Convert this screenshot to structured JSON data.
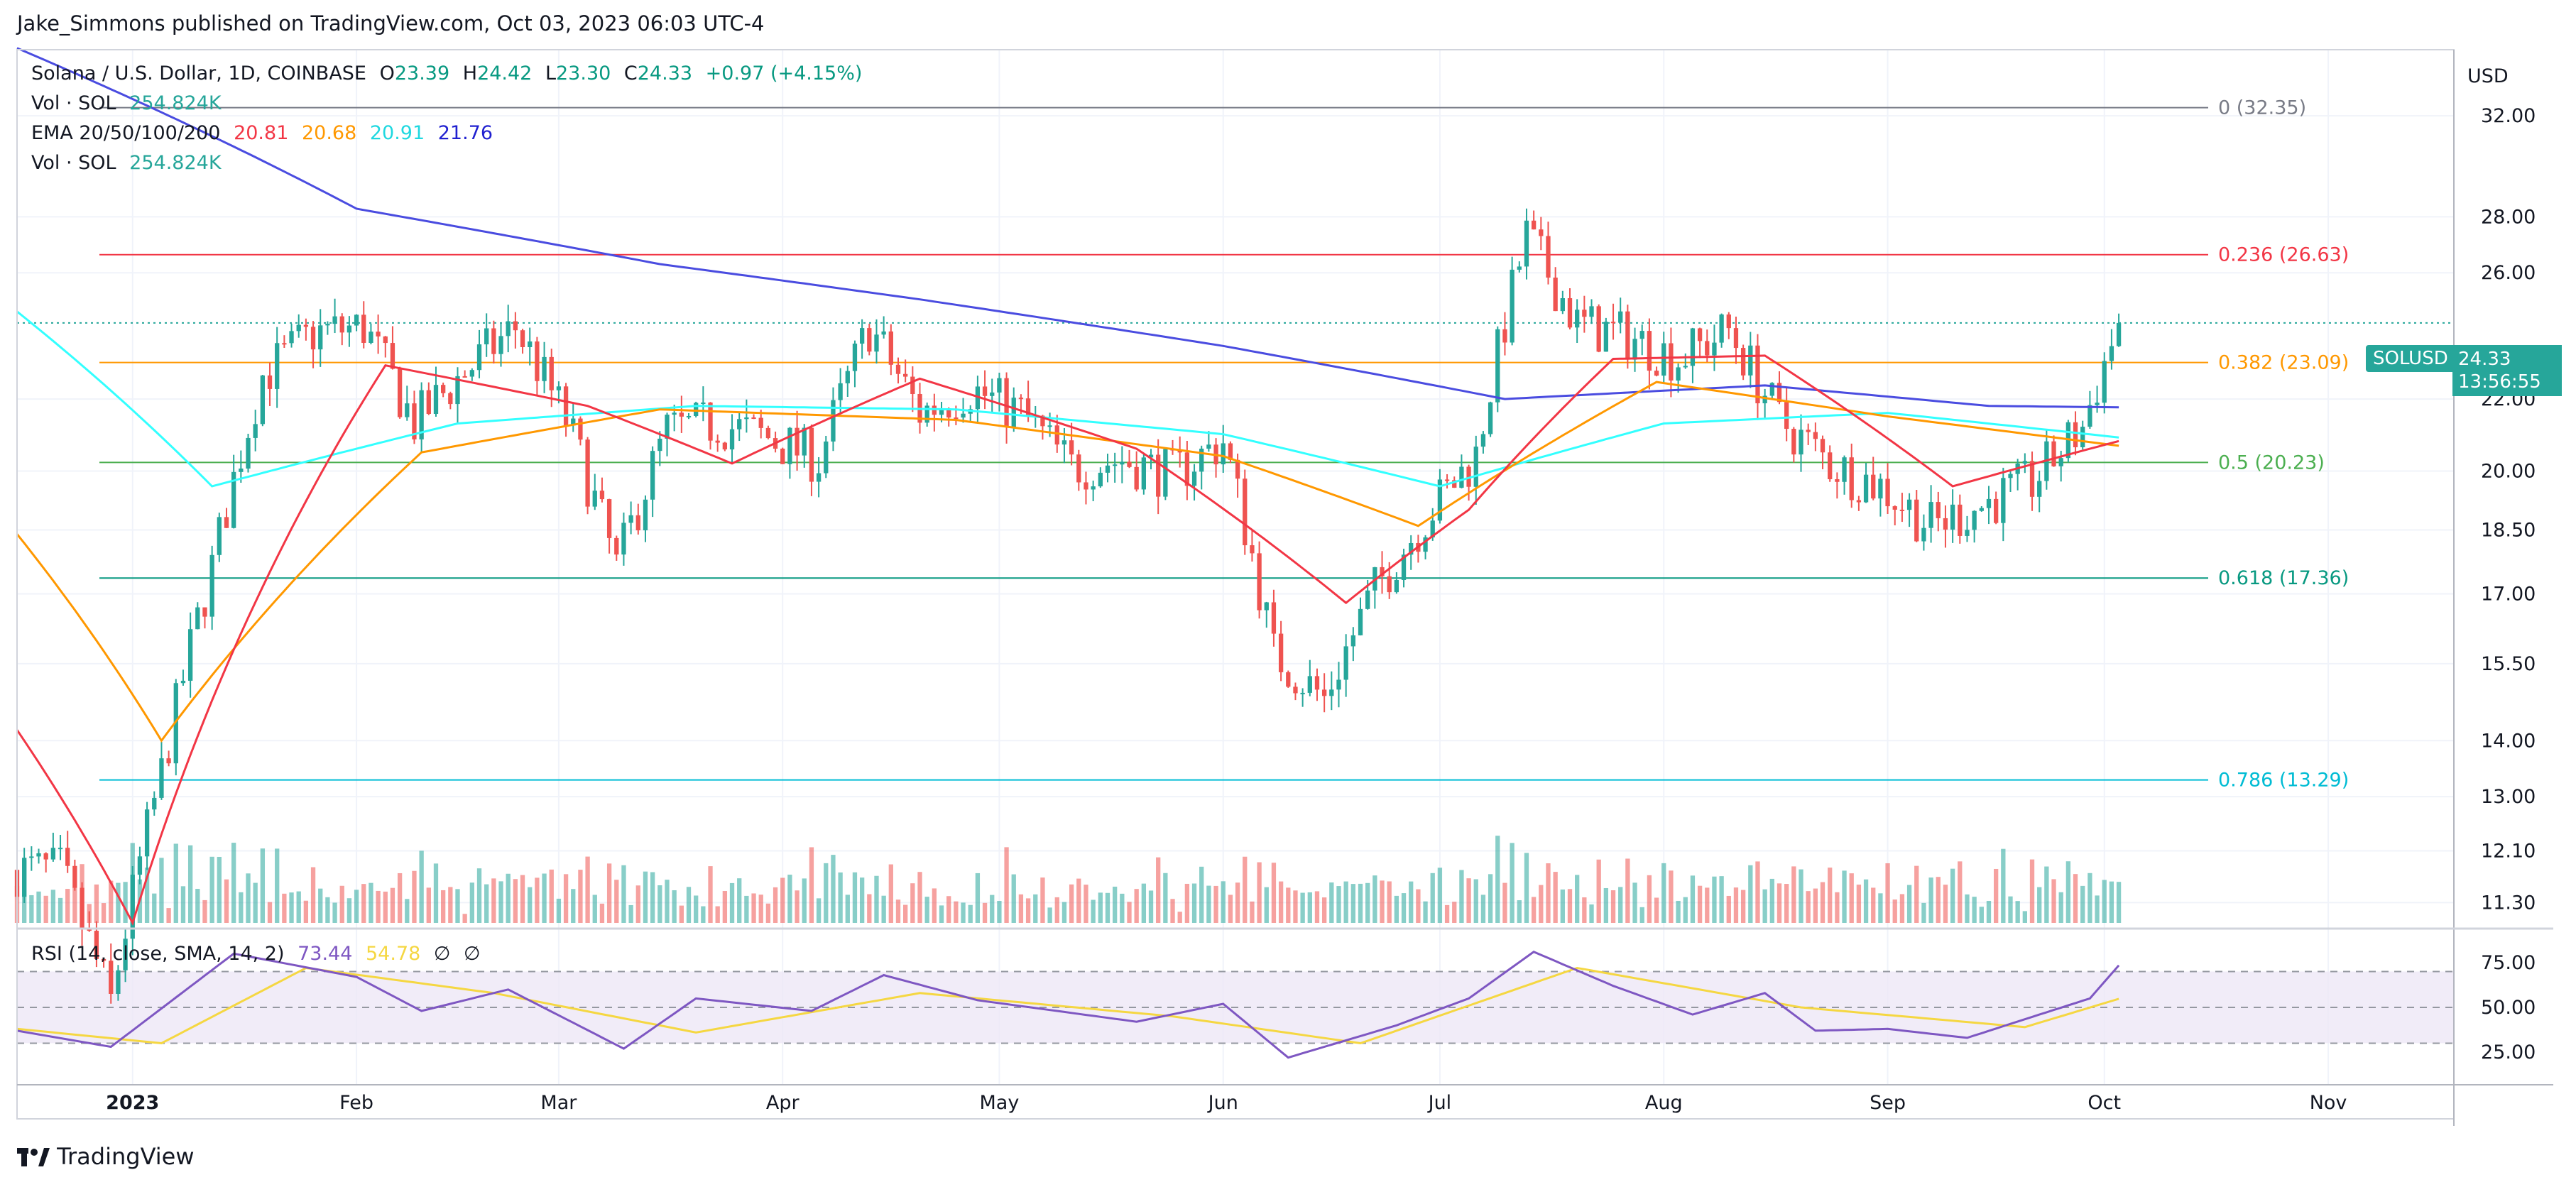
{
  "header": {
    "publisher": "Jake_Simmons published on TradingView.com, Oct 03, 2023 06:03 UTC-4"
  },
  "legend": {
    "symbol": "Solana / U.S. Dollar, 1D, COINBASE",
    "o_label": "O",
    "o": "23.39",
    "h_label": "H",
    "h": "24.42",
    "l_label": "L",
    "l": "23.30",
    "c_label": "C",
    "c": "24.33",
    "change": "+0.97 (+4.15%)",
    "vol_label": "Vol · SOL",
    "vol_value": "254.824K",
    "ema_label": "EMA 20/50/100/200",
    "ema20": "20.81",
    "ema50": "20.68",
    "ema100": "20.91",
    "ema200": "21.76",
    "vol2_label": "Vol · SOL",
    "vol2_value": "254.824K"
  },
  "currency": "USD",
  "price_tag": {
    "symbol": "SOLUSD",
    "price": "24.33",
    "countdown": "13:56:55"
  },
  "rsi": {
    "label": "RSI (14, close, SMA, 14, 2)",
    "rsi_value": "73.44",
    "sma_value": "54.78",
    "extra1": "∅",
    "extra2": "∅"
  },
  "footer": {
    "brand": "TradingView",
    "logo": "tradingview-logo"
  },
  "colors": {
    "up": "#26a69a",
    "down": "#ef5350",
    "ema20": "#f23645",
    "ema50": "#ff9800",
    "ema100": "#33ffff",
    "ema200": "#4a4ce0",
    "rsi": "#7e57c2",
    "rsi_sma": "#f5d742",
    "fib0": "#787b86",
    "fib236": "#f23645",
    "fib382": "#ff9800",
    "fib5": "#4caf50",
    "fib618": "#089981",
    "fib786": "#00bcd4"
  },
  "chart_data": {
    "type": "candlestick",
    "x_ticks": [
      "2023",
      "Feb",
      "Mar",
      "Apr",
      "May",
      "Jun",
      "Jul",
      "Aug",
      "Sep",
      "Oct",
      "Nov"
    ],
    "y_ticks": [
      "32.00",
      "28.00",
      "26.00",
      "22.00",
      "20.00",
      "18.50",
      "17.00",
      "15.50",
      "14.00",
      "13.00",
      "12.10",
      "11.30"
    ],
    "y_scale": "log",
    "rsi_ticks": [
      "75.00",
      "50.00",
      "25.00"
    ],
    "fib_levels": [
      {
        "label": "0 (32.35)",
        "value": 32.35
      },
      {
        "label": "0.236 (26.63)",
        "value": 26.63
      },
      {
        "label": "0.382 (23.09)",
        "value": 23.09
      },
      {
        "label": "0.5 (20.23)",
        "value": 20.23
      },
      {
        "label": "0.618 (17.36)",
        "value": 17.36
      },
      {
        "label": "0.786 (13.29)",
        "value": 13.29
      }
    ],
    "close_series": [
      {
        "date": "2022-12-22",
        "close": 11.8
      },
      {
        "date": "2022-12-29",
        "close": 9.9
      },
      {
        "date": "2023-01-05",
        "close": 13.4
      },
      {
        "date": "2023-01-12",
        "close": 17.6
      },
      {
        "date": "2023-01-19",
        "close": 22.7
      },
      {
        "date": "2023-01-26",
        "close": 24.0
      },
      {
        "date": "2023-02-02",
        "close": 24.2
      },
      {
        "date": "2023-02-09",
        "close": 21.3
      },
      {
        "date": "2023-02-16",
        "close": 22.8
      },
      {
        "date": "2023-02-23",
        "close": 24.2
      },
      {
        "date": "2023-03-02",
        "close": 21.4
      },
      {
        "date": "2023-03-09",
        "close": 17.6
      },
      {
        "date": "2023-03-16",
        "close": 21.1
      },
      {
        "date": "2023-03-23",
        "close": 21.3
      },
      {
        "date": "2023-03-30",
        "close": 20.9
      },
      {
        "date": "2023-04-06",
        "close": 20.3
      },
      {
        "date": "2023-04-13",
        "close": 24.2
      },
      {
        "date": "2023-04-20",
        "close": 21.6
      },
      {
        "date": "2023-04-27",
        "close": 22.3
      },
      {
        "date": "2023-05-04",
        "close": 21.6
      },
      {
        "date": "2023-05-11",
        "close": 20.1
      },
      {
        "date": "2023-05-18",
        "close": 20.3
      },
      {
        "date": "2023-05-25",
        "close": 19.9
      },
      {
        "date": "2023-06-01",
        "close": 20.8
      },
      {
        "date": "2023-06-08",
        "close": 15.7
      },
      {
        "date": "2023-06-15",
        "close": 14.8
      },
      {
        "date": "2023-06-22",
        "close": 17.1
      },
      {
        "date": "2023-06-29",
        "close": 18.8
      },
      {
        "date": "2023-07-06",
        "close": 20.4
      },
      {
        "date": "2023-07-13",
        "close": 27.3
      },
      {
        "date": "2023-07-20",
        "close": 24.3
      },
      {
        "date": "2023-07-27",
        "close": 23.9
      },
      {
        "date": "2023-08-03",
        "close": 23.2
      },
      {
        "date": "2023-08-10",
        "close": 24.1
      },
      {
        "date": "2023-08-17",
        "close": 21.4
      },
      {
        "date": "2023-08-24",
        "close": 20.2
      },
      {
        "date": "2023-08-31",
        "close": 19.6
      },
      {
        "date": "2023-09-07",
        "close": 18.6
      },
      {
        "date": "2023-09-14",
        "close": 19.1
      },
      {
        "date": "2023-09-21",
        "close": 19.7
      },
      {
        "date": "2023-09-28",
        "close": 21.2
      },
      {
        "date": "2023-10-03",
        "close": 24.33
      }
    ],
    "ema200_series": [
      {
        "date": "2022-12-16",
        "value": 35.0
      },
      {
        "date": "2023-02-01",
        "value": 28.3
      },
      {
        "date": "2023-03-15",
        "value": 26.3
      },
      {
        "date": "2023-04-20",
        "value": 25.1
      },
      {
        "date": "2023-06-01",
        "value": 23.6
      },
      {
        "date": "2023-07-10",
        "value": 22.0
      },
      {
        "date": "2023-08-15",
        "value": 22.4
      },
      {
        "date": "2023-09-15",
        "value": 21.8
      },
      {
        "date": "2023-10-03",
        "value": 21.76
      }
    ],
    "ema100_series": [
      {
        "date": "2022-12-16",
        "value": 24.7
      },
      {
        "date": "2023-01-12",
        "value": 19.6
      },
      {
        "date": "2023-02-15",
        "value": 21.3
      },
      {
        "date": "2023-03-20",
        "value": 21.8
      },
      {
        "date": "2023-04-25",
        "value": 21.7
      },
      {
        "date": "2023-06-01",
        "value": 21.0
      },
      {
        "date": "2023-07-01",
        "value": 19.6
      },
      {
        "date": "2023-08-01",
        "value": 21.3
      },
      {
        "date": "2023-09-01",
        "value": 21.6
      },
      {
        "date": "2023-10-03",
        "value": 20.91
      }
    ],
    "ema50_series": [
      {
        "date": "2022-12-16",
        "value": 18.4
      },
      {
        "date": "2023-01-05",
        "value": 14.0
      },
      {
        "date": "2023-02-10",
        "value": 20.5
      },
      {
        "date": "2023-03-15",
        "value": 21.7
      },
      {
        "date": "2023-04-25",
        "value": 21.4
      },
      {
        "date": "2023-06-01",
        "value": 20.4
      },
      {
        "date": "2023-06-28",
        "value": 18.6
      },
      {
        "date": "2023-07-31",
        "value": 22.5
      },
      {
        "date": "2023-09-01",
        "value": 21.5
      },
      {
        "date": "2023-10-03",
        "value": 20.68
      }
    ],
    "ema20_series": [
      {
        "date": "2022-12-16",
        "value": 14.2
      },
      {
        "date": "2023-01-01",
        "value": 11.0
      },
      {
        "date": "2023-01-20",
        "value": 17.5
      },
      {
        "date": "2023-02-05",
        "value": 23.0
      },
      {
        "date": "2023-03-05",
        "value": 21.8
      },
      {
        "date": "2023-03-25",
        "value": 20.2
      },
      {
        "date": "2023-04-20",
        "value": 22.6
      },
      {
        "date": "2023-05-20",
        "value": 20.6
      },
      {
        "date": "2023-06-18",
        "value": 16.8
      },
      {
        "date": "2023-07-05",
        "value": 19.0
      },
      {
        "date": "2023-07-25",
        "value": 23.2
      },
      {
        "date": "2023-08-15",
        "value": 23.3
      },
      {
        "date": "2023-09-10",
        "value": 19.6
      },
      {
        "date": "2023-10-03",
        "value": 20.81
      }
    ],
    "rsi_series": [
      {
        "date": "2022-12-16",
        "value": 37
      },
      {
        "date": "2022-12-29",
        "value": 28
      },
      {
        "date": "2023-01-15",
        "value": 80
      },
      {
        "date": "2023-02-01",
        "value": 67
      },
      {
        "date": "2023-02-10",
        "value": 48
      },
      {
        "date": "2023-02-22",
        "value": 60
      },
      {
        "date": "2023-03-10",
        "value": 27
      },
      {
        "date": "2023-03-20",
        "value": 55
      },
      {
        "date": "2023-04-05",
        "value": 48
      },
      {
        "date": "2023-04-15",
        "value": 68
      },
      {
        "date": "2023-04-28",
        "value": 54
      },
      {
        "date": "2023-05-20",
        "value": 42
      },
      {
        "date": "2023-06-01",
        "value": 52
      },
      {
        "date": "2023-06-10",
        "value": 22
      },
      {
        "date": "2023-06-25",
        "value": 40
      },
      {
        "date": "2023-07-05",
        "value": 55
      },
      {
        "date": "2023-07-14",
        "value": 81
      },
      {
        "date": "2023-07-25",
        "value": 62
      },
      {
        "date": "2023-08-05",
        "value": 46
      },
      {
        "date": "2023-08-15",
        "value": 58
      },
      {
        "date": "2023-08-22",
        "value": 37
      },
      {
        "date": "2023-09-01",
        "value": 38
      },
      {
        "date": "2023-09-12",
        "value": 33
      },
      {
        "date": "2023-09-22",
        "value": 46
      },
      {
        "date": "2023-09-29",
        "value": 55
      },
      {
        "date": "2023-10-03",
        "value": 73.44
      }
    ],
    "rsi_sma_series": [
      {
        "date": "2022-12-16",
        "value": 38
      },
      {
        "date": "2023-01-05",
        "value": 30
      },
      {
        "date": "2023-01-25",
        "value": 72
      },
      {
        "date": "2023-02-20",
        "value": 58
      },
      {
        "date": "2023-03-20",
        "value": 36
      },
      {
        "date": "2023-04-20",
        "value": 58
      },
      {
        "date": "2023-05-25",
        "value": 45
      },
      {
        "date": "2023-06-20",
        "value": 30
      },
      {
        "date": "2023-07-20",
        "value": 72
      },
      {
        "date": "2023-08-20",
        "value": 50
      },
      {
        "date": "2023-09-20",
        "value": 39
      },
      {
        "date": "2023-10-03",
        "value": 54.78
      }
    ],
    "rsi_band": [
      30,
      70
    ]
  }
}
